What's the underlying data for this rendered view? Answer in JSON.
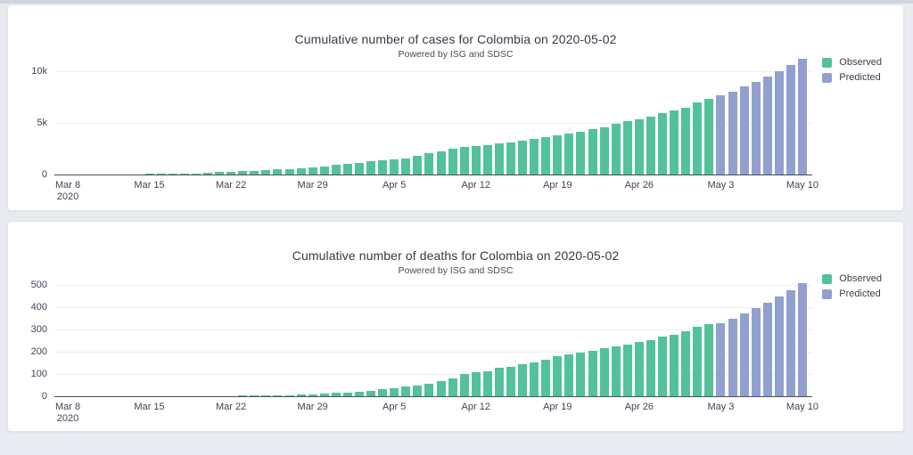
{
  "chart_data": [
    {
      "type": "bar",
      "title": "Cumulative number of cases for Colombia on 2020-05-02",
      "subtitle": "Powered by ISG and SDSC",
      "x_range": [
        "2020-03-08",
        "2020-05-10"
      ],
      "frequency": "daily",
      "observed_range": [
        "2020-03-08",
        "2020-05-02"
      ],
      "predicted_range": [
        "2020-05-03",
        "2020-05-10"
      ],
      "series": [
        {
          "name": "Observed",
          "color": "#53c29a",
          "values": [
            1,
            3,
            3,
            9,
            13,
            22,
            34,
            45,
            57,
            75,
            102,
            128,
            196,
            235,
            277,
            306,
            378,
            470,
            491,
            539,
            608,
            702,
            798,
            906,
            1065,
            1161,
            1267,
            1406,
            1485,
            1579,
            1780,
            2054,
            2223,
            2473,
            2709,
            2776,
            2852,
            2979,
            3105,
            3233,
            3439,
            3621,
            3792,
            3977,
            4149,
            4356,
            4561,
            4881,
            5142,
            5379,
            5597,
            5949,
            6211,
            6507,
            7006,
            7285
          ]
        },
        {
          "name": "Predicted",
          "color": "#92a0d0",
          "values": [
            7650,
            8050,
            8500,
            8980,
            9480,
            10020,
            10600,
            11200
          ]
        }
      ],
      "xticks": [
        {
          "label": "Mar 8",
          "sublabel": "2020",
          "index": 0
        },
        {
          "label": "Mar 15",
          "index": 7
        },
        {
          "label": "Mar 22",
          "index": 14
        },
        {
          "label": "Mar 29",
          "index": 21
        },
        {
          "label": "Apr 5",
          "index": 28
        },
        {
          "label": "Apr 12",
          "index": 35
        },
        {
          "label": "Apr 19",
          "index": 42
        },
        {
          "label": "Apr 26",
          "index": 49
        },
        {
          "label": "May 3",
          "index": 56
        },
        {
          "label": "May 10",
          "index": 63
        }
      ],
      "yticks": [
        {
          "label": "0",
          "value": 0
        },
        {
          "label": "5k",
          "value": 5000
        },
        {
          "label": "10k",
          "value": 10000
        }
      ],
      "ylim": [
        0,
        11600
      ],
      "grid": true,
      "legend_position": "top-right"
    },
    {
      "type": "bar",
      "title": "Cumulative number of deaths for Colombia on 2020-05-02",
      "subtitle": "Powered by ISG and SDSC",
      "x_range": [
        "2020-03-08",
        "2020-05-10"
      ],
      "frequency": "daily",
      "observed_range": [
        "2020-03-08",
        "2020-05-02"
      ],
      "predicted_range": [
        "2020-05-03",
        "2020-05-10"
      ],
      "series": [
        {
          "name": "Observed",
          "color": "#53c29a",
          "values": [
            0,
            0,
            0,
            0,
            0,
            0,
            0,
            0,
            1,
            1,
            1,
            1,
            1,
            1,
            2,
            3,
            3,
            4,
            6,
            6,
            10,
            10,
            12,
            16,
            17,
            19,
            25,
            32,
            35,
            46,
            50,
            55,
            69,
            80,
            100,
            109,
            112,
            127,
            131,
            144,
            153,
            166,
            179,
            189,
            196,
            206,
            215,
            225,
            233,
            244,
            253,
            269,
            278,
            293,
            314,
            324
          ]
        },
        {
          "name": "Predicted",
          "color": "#92a0d0",
          "values": [
            330,
            350,
            372,
            396,
            421,
            448,
            477,
            508
          ]
        }
      ],
      "xticks": [
        {
          "label": "Mar 8",
          "sublabel": "2020",
          "index": 0
        },
        {
          "label": "Mar 15",
          "index": 7
        },
        {
          "label": "Mar 22",
          "index": 14
        },
        {
          "label": "Mar 29",
          "index": 21
        },
        {
          "label": "Apr 5",
          "index": 28
        },
        {
          "label": "Apr 12",
          "index": 35
        },
        {
          "label": "Apr 19",
          "index": 42
        },
        {
          "label": "Apr 26",
          "index": 49
        },
        {
          "label": "May 3",
          "index": 56
        },
        {
          "label": "May 10",
          "index": 63
        }
      ],
      "yticks": [
        {
          "label": "0",
          "value": 0
        },
        {
          "label": "100",
          "value": 100
        },
        {
          "label": "200",
          "value": 200
        },
        {
          "label": "300",
          "value": 300
        },
        {
          "label": "400",
          "value": 400
        },
        {
          "label": "500",
          "value": 500
        }
      ],
      "ylim": [
        0,
        530
      ],
      "grid": true,
      "legend_position": "top-right"
    }
  ],
  "colors": {
    "observed": "#53c29a",
    "predicted": "#92a0d0",
    "page_background": "#e9ebf1",
    "card_background": "#ffffff"
  }
}
